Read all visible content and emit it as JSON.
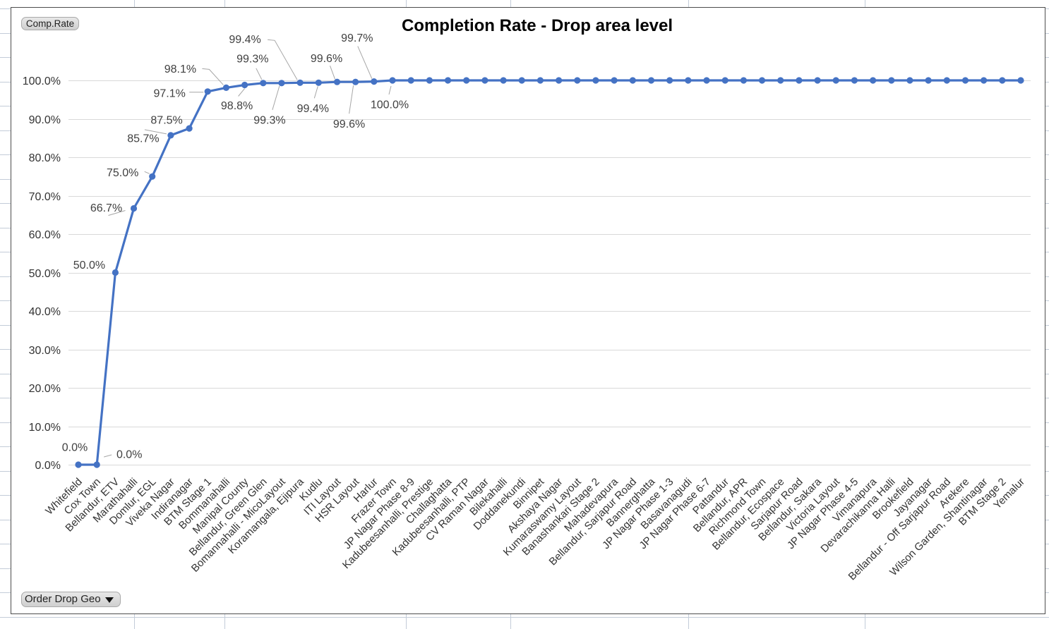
{
  "field_buttons": {
    "value_field": "Comp.Rate",
    "axis_field": "Order Drop Geo",
    "axis_field_icon": "triangle-down-icon"
  },
  "chart_data": {
    "type": "line",
    "title": "Completion Rate - Drop area level",
    "categories": [
      "Whitefield",
      "Cox Town",
      "Bellandur, ETV",
      "Marathahalli",
      "Domlur, EGL",
      "Viveka Nagar",
      "Indiranagar",
      "BTM Stage 1",
      "Bommanahalli",
      "Manipal County",
      "Bellandur, Green Glen",
      "Bomannahalli - MicoLayout",
      "Koramangala, Ejipura",
      "Kudlu",
      "ITI Layout",
      "HSR Layout",
      "Harlur",
      "Frazer Town",
      "JP Nagar Phase 8-9",
      "Kadubeesanhalli, Prestige",
      "Challaghatta",
      "Kadubeesanhalli, PTP",
      "CV Raman Nagar",
      "Bilekahalli",
      "Doddanekundi",
      "Binnipet",
      "Akshaya Nagar",
      "Kumaraswamy Layout",
      "Banashankari Stage 2",
      "Mahadevapura",
      "Bellandur, Sarjapur Road",
      "Bannerghatta",
      "JP Nagar Phase 1-3",
      "Basavanagudi",
      "JP Nagar Phase 6-7",
      "Pattandur",
      "Bellandur, APR",
      "Richmond Town",
      "Bellandur, Ecospace",
      "Sarjapur Road",
      "Bellandur, Sakara",
      "Victoria Layout",
      "JP Nagar Phase 4-5",
      "Vimanapura",
      "Devarachikanna Halli",
      "Brookefield",
      "Jayanagar",
      "Bellandur - Off Sarjapur Road",
      "Arekere",
      "Wilson Garden, Shantinagar",
      "BTM Stage 2",
      "Yemalur"
    ],
    "series": [
      {
        "color": "#4472C4",
        "marker": "circle",
        "values": [
          0.0,
          0.0,
          50.0,
          66.7,
          75.0,
          85.7,
          87.5,
          97.1,
          98.1,
          98.8,
          99.3,
          99.3,
          99.4,
          99.4,
          99.6,
          99.6,
          99.7,
          100.0,
          100.0,
          100.0,
          100.0,
          100.0,
          100.0,
          100.0,
          100.0,
          100.0,
          100.0,
          100.0,
          100.0,
          100.0,
          100.0,
          100.0,
          100.0,
          100.0,
          100.0,
          100.0,
          100.0,
          100.0,
          100.0,
          100.0,
          100.0,
          100.0,
          100.0,
          100.0,
          100.0,
          100.0,
          100.0,
          100.0,
          100.0,
          100.0,
          100.0,
          100.0
        ]
      }
    ],
    "data_labels": [
      "0.0%",
      "0.0%",
      "50.0%",
      "66.7%",
      "75.0%",
      "85.7%",
      "87.5%",
      "97.1%",
      "98.1%",
      "98.8%",
      "99.3%",
      "99.3%",
      "99.4%",
      "99.4%",
      "99.6%",
      "99.6%",
      "99.7%",
      "100.0%",
      null,
      null,
      null,
      null,
      null,
      null,
      null,
      null,
      null,
      null,
      null,
      null,
      null,
      null,
      null,
      null,
      null,
      null,
      null,
      null,
      null,
      null,
      null,
      null,
      null,
      null,
      null,
      null,
      null,
      null,
      null,
      null,
      null,
      null
    ],
    "y_ticks": [
      "0.0%",
      "10.0%",
      "20.0%",
      "30.0%",
      "40.0%",
      "50.0%",
      "60.0%",
      "70.0%",
      "80.0%",
      "90.0%",
      "100.0%"
    ],
    "ylim": [
      0,
      100
    ],
    "y_unit": "percent",
    "grid": "horizontal",
    "legend": "none"
  }
}
